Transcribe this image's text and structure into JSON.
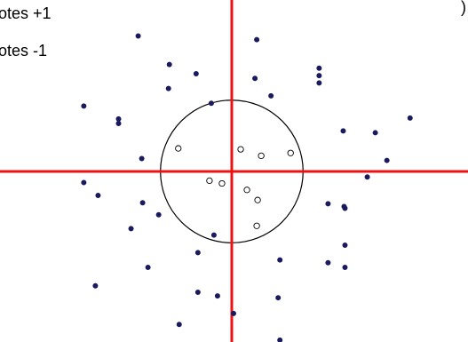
{
  "chart_data": {
    "type": "scatter",
    "legend": {
      "entries": [
        {
          "label": "otes +1",
          "marker": "filled"
        },
        {
          "label": "otes -1",
          "marker": "hollow"
        }
      ],
      "corner_fragment": ")",
      "placement": "top-left"
    },
    "axes": {
      "color": "#ee1111",
      "x_crosses_at": 0,
      "y_crosses_at": 0,
      "xlim": [
        -260,
        265
      ],
      "ylim": [
        -185,
        186
      ],
      "ticks": false,
      "grid": false
    },
    "boundary_circle": {
      "cx": 0,
      "cy": 0,
      "r": 80,
      "color": "#000000"
    },
    "series": [
      {
        "marker": "filled",
        "color": "#1a1a5e",
        "points": [
          [
            -105,
            147
          ],
          [
            28,
            143
          ],
          [
            -70,
            116
          ],
          [
            -40,
            106
          ],
          [
            98,
            112
          ],
          [
            -71,
            90
          ],
          [
            26,
            101
          ],
          [
            44,
            82
          ],
          [
            98,
            104
          ],
          [
            98,
            96
          ],
          [
            -23,
            74
          ],
          [
            -166,
            71
          ],
          [
            -127,
            57
          ],
          [
            -127,
            52
          ],
          [
            200,
            58
          ],
          [
            125,
            44
          ],
          [
            161,
            42
          ],
          [
            -101,
            14
          ],
          [
            174,
            12
          ],
          [
            -166,
            -12
          ],
          [
            152,
            -6
          ],
          [
            -150,
            -26
          ],
          [
            -100,
            -34
          ],
          [
            -82,
            -47
          ],
          [
            108,
            -35
          ],
          [
            126,
            -38
          ],
          [
            127,
            -40
          ],
          [
            -113,
            -62
          ],
          [
            -20,
            -69
          ],
          [
            127,
            -80
          ],
          [
            -38,
            -88
          ],
          [
            54,
            -96
          ],
          [
            108,
            -99
          ],
          [
            -94,
            -104
          ],
          [
            127,
            -104
          ],
          [
            -153,
            -124
          ],
          [
            -38,
            -131
          ],
          [
            -16,
            -135
          ],
          [
            52,
            -137
          ],
          [
            2,
            -154
          ],
          [
            -59,
            -166
          ],
          [
            54,
            -183
          ]
        ]
      },
      {
        "marker": "hollow",
        "color": "#000000",
        "points": [
          [
            -60,
            25
          ],
          [
            10,
            24
          ],
          [
            33,
            17
          ],
          [
            66,
            20
          ],
          [
            -25,
            -10
          ],
          [
            -11,
            -13
          ],
          [
            17,
            -20
          ],
          [
            29,
            -31
          ],
          [
            28,
            -59
          ]
        ]
      }
    ]
  }
}
